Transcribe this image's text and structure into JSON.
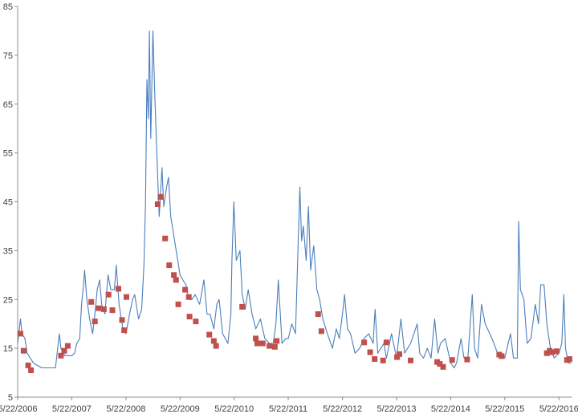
{
  "chart_data": {
    "type": "line",
    "title": "",
    "xlabel": "",
    "ylabel": "",
    "ylim": [
      5,
      85
    ],
    "y_ticks": [
      5,
      15,
      25,
      35,
      45,
      55,
      65,
      75,
      85
    ],
    "x_range": [
      "2006-05-22",
      "2016-08-15"
    ],
    "x_ticks": [
      {
        "date": "2006-05-22",
        "label": "5/22/2006"
      },
      {
        "date": "2007-05-22",
        "label": "5/22/2007"
      },
      {
        "date": "2008-05-22",
        "label": "5/22/2008"
      },
      {
        "date": "2009-05-22",
        "label": "5/22/2009"
      },
      {
        "date": "2010-05-22",
        "label": "5/22/2010"
      },
      {
        "date": "2011-05-22",
        "label": "5/22/2011"
      },
      {
        "date": "2012-05-22",
        "label": "5/22/2012"
      },
      {
        "date": "2013-05-22",
        "label": "5/22/2013"
      },
      {
        "date": "2014-05-22",
        "label": "5/22/2014"
      },
      {
        "date": "2015-05-22",
        "label": "5/22/2015"
      },
      {
        "date": "2016-05-22",
        "label": "5/22/2016"
      }
    ],
    "grid": false,
    "legend": "none",
    "colors": {
      "line": "#4a7ebb",
      "marker": "#c0504d",
      "axis": "#8c8c8c"
    },
    "series": [
      {
        "type": "line",
        "points": [
          [
            "2006-05-22",
            16
          ],
          [
            "2006-06-10",
            21
          ],
          [
            "2006-06-20",
            18
          ],
          [
            "2006-07-10",
            17
          ],
          [
            "2006-07-25",
            14
          ],
          [
            "2006-08-15",
            13
          ],
          [
            "2006-09-05",
            12
          ],
          [
            "2006-10-01",
            11.5
          ],
          [
            "2006-11-01",
            11
          ],
          [
            "2006-12-01",
            11
          ],
          [
            "2007-01-05",
            11
          ],
          [
            "2007-02-01",
            11
          ],
          [
            "2007-02-27",
            18
          ],
          [
            "2007-03-10",
            15
          ],
          [
            "2007-04-05",
            13.5
          ],
          [
            "2007-05-22",
            13.5
          ],
          [
            "2007-06-10",
            14
          ],
          [
            "2007-06-25",
            16
          ],
          [
            "2007-07-15",
            17
          ],
          [
            "2007-07-27",
            24
          ],
          [
            "2007-08-10",
            28
          ],
          [
            "2007-08-17",
            31
          ],
          [
            "2007-09-01",
            25
          ],
          [
            "2007-09-20",
            21
          ],
          [
            "2007-10-10",
            18
          ],
          [
            "2007-10-25",
            22
          ],
          [
            "2007-11-10",
            27
          ],
          [
            "2007-11-26",
            29
          ],
          [
            "2007-12-10",
            24
          ],
          [
            "2008-01-01",
            22
          ],
          [
            "2008-01-22",
            30
          ],
          [
            "2008-02-10",
            27
          ],
          [
            "2008-03-05",
            27
          ],
          [
            "2008-03-17",
            32
          ],
          [
            "2008-04-05",
            24
          ],
          [
            "2008-05-01",
            19
          ],
          [
            "2008-05-22",
            18
          ],
          [
            "2008-06-15",
            22
          ],
          [
            "2008-07-05",
            25
          ],
          [
            "2008-07-20",
            26
          ],
          [
            "2008-08-15",
            21
          ],
          [
            "2008-09-05",
            23
          ],
          [
            "2008-09-20",
            32
          ],
          [
            "2008-10-01",
            45
          ],
          [
            "2008-10-10",
            70
          ],
          [
            "2008-10-20",
            62
          ],
          [
            "2008-10-27",
            80
          ],
          [
            "2008-11-05",
            58
          ],
          [
            "2008-11-20",
            80
          ],
          [
            "2008-12-01",
            68
          ],
          [
            "2008-12-15",
            56
          ],
          [
            "2009-01-01",
            42
          ],
          [
            "2009-01-20",
            52
          ],
          [
            "2009-02-01",
            44
          ],
          [
            "2009-02-20",
            48
          ],
          [
            "2009-03-05",
            50
          ],
          [
            "2009-03-20",
            42
          ],
          [
            "2009-04-10",
            38
          ],
          [
            "2009-05-01",
            34
          ],
          [
            "2009-05-22",
            30
          ],
          [
            "2009-06-10",
            29
          ],
          [
            "2009-07-01",
            28
          ],
          [
            "2009-07-20",
            25
          ],
          [
            "2009-08-10",
            25
          ],
          [
            "2009-09-01",
            26
          ],
          [
            "2009-10-01",
            24
          ],
          [
            "2009-10-30",
            29
          ],
          [
            "2009-11-20",
            22
          ],
          [
            "2009-12-10",
            22
          ],
          [
            "2010-01-05",
            19
          ],
          [
            "2010-01-25",
            24
          ],
          [
            "2010-02-10",
            25
          ],
          [
            "2010-03-05",
            18
          ],
          [
            "2010-04-10",
            16
          ],
          [
            "2010-04-30",
            22
          ],
          [
            "2010-05-07",
            33
          ],
          [
            "2010-05-20",
            45
          ],
          [
            "2010-06-05",
            33
          ],
          [
            "2010-06-30",
            35
          ],
          [
            "2010-07-15",
            26
          ],
          [
            "2010-08-05",
            23
          ],
          [
            "2010-08-25",
            27
          ],
          [
            "2010-09-20",
            22
          ],
          [
            "2010-10-15",
            19
          ],
          [
            "2010-11-15",
            21
          ],
          [
            "2010-12-15",
            17
          ],
          [
            "2011-01-15",
            16
          ],
          [
            "2011-02-10",
            16
          ],
          [
            "2011-02-28",
            20
          ],
          [
            "2011-03-16",
            29
          ],
          [
            "2011-04-10",
            16
          ],
          [
            "2011-05-05",
            17
          ],
          [
            "2011-05-22",
            17
          ],
          [
            "2011-06-15",
            20
          ],
          [
            "2011-07-10",
            18
          ],
          [
            "2011-08-08",
            48
          ],
          [
            "2011-08-20",
            37
          ],
          [
            "2011-09-01",
            40
          ],
          [
            "2011-09-20",
            33
          ],
          [
            "2011-10-05",
            44
          ],
          [
            "2011-10-20",
            31
          ],
          [
            "2011-11-10",
            36
          ],
          [
            "2011-12-01",
            27
          ],
          [
            "2011-12-20",
            25
          ],
          [
            "2012-01-10",
            21
          ],
          [
            "2012-02-10",
            18
          ],
          [
            "2012-03-15",
            15
          ],
          [
            "2012-04-10",
            19
          ],
          [
            "2012-05-01",
            17
          ],
          [
            "2012-05-22",
            22
          ],
          [
            "2012-06-05",
            26
          ],
          [
            "2012-06-25",
            19
          ],
          [
            "2012-07-15",
            18
          ],
          [
            "2012-08-15",
            14
          ],
          [
            "2012-09-15",
            15
          ],
          [
            "2012-10-15",
            17
          ],
          [
            "2012-11-15",
            18
          ],
          [
            "2012-12-15",
            16
          ],
          [
            "2012-12-28",
            23
          ],
          [
            "2013-01-15",
            14
          ],
          [
            "2013-02-25",
            16
          ],
          [
            "2013-03-15",
            13
          ],
          [
            "2013-04-18",
            18
          ],
          [
            "2013-05-22",
            13
          ],
          [
            "2013-06-20",
            21
          ],
          [
            "2013-07-15",
            14
          ],
          [
            "2013-08-25",
            16
          ],
          [
            "2013-10-08",
            20
          ],
          [
            "2013-10-25",
            14
          ],
          [
            "2013-11-20",
            13
          ],
          [
            "2013-12-15",
            15
          ],
          [
            "2014-01-10",
            13
          ],
          [
            "2014-02-03",
            21
          ],
          [
            "2014-02-25",
            14
          ],
          [
            "2014-03-15",
            16
          ],
          [
            "2014-04-15",
            17
          ],
          [
            "2014-05-22",
            12
          ],
          [
            "2014-06-15",
            11
          ],
          [
            "2014-07-01",
            12
          ],
          [
            "2014-07-31",
            17
          ],
          [
            "2014-08-20",
            13
          ],
          [
            "2014-09-15",
            13
          ],
          [
            "2014-10-15",
            26
          ],
          [
            "2014-10-30",
            15
          ],
          [
            "2014-11-20",
            13
          ],
          [
            "2014-12-16",
            24
          ],
          [
            "2015-01-10",
            20
          ],
          [
            "2015-02-10",
            18
          ],
          [
            "2015-03-10",
            16
          ],
          [
            "2015-04-15",
            13
          ],
          [
            "2015-05-22",
            13
          ],
          [
            "2015-06-30",
            18
          ],
          [
            "2015-07-20",
            13
          ],
          [
            "2015-08-15",
            13
          ],
          [
            "2015-08-24",
            41
          ],
          [
            "2015-09-05",
            27
          ],
          [
            "2015-09-28",
            25
          ],
          [
            "2015-10-20",
            16
          ],
          [
            "2015-11-15",
            17
          ],
          [
            "2015-12-14",
            24
          ],
          [
            "2016-01-05",
            20
          ],
          [
            "2016-01-20",
            28
          ],
          [
            "2016-02-11",
            28
          ],
          [
            "2016-03-01",
            20
          ],
          [
            "2016-03-25",
            15
          ],
          [
            "2016-04-20",
            13
          ],
          [
            "2016-05-22",
            14
          ],
          [
            "2016-06-10",
            16
          ],
          [
            "2016-06-24",
            26
          ],
          [
            "2016-07-05",
            15
          ],
          [
            "2016-07-25",
            12
          ],
          [
            "2016-08-15",
            12
          ]
        ]
      },
      {
        "type": "scatter",
        "points": [
          [
            "2006-06-10",
            18
          ],
          [
            "2006-07-01",
            14.5
          ],
          [
            "2006-08-01",
            11.5
          ],
          [
            "2006-08-20",
            10.5
          ],
          [
            "2007-03-10",
            13.5
          ],
          [
            "2007-04-01",
            14.5
          ],
          [
            "2007-04-25",
            15.5
          ],
          [
            "2007-10-01",
            24.5
          ],
          [
            "2007-10-25",
            20.5
          ],
          [
            "2007-11-20",
            23.2
          ],
          [
            "2007-12-25",
            23
          ],
          [
            "2008-01-25",
            26
          ],
          [
            "2008-02-20",
            22.8
          ],
          [
            "2008-04-01",
            27.2
          ],
          [
            "2008-04-25",
            20.8
          ],
          [
            "2008-05-10",
            18.7
          ],
          [
            "2008-05-25",
            25.5
          ],
          [
            "2008-12-22",
            44.5
          ],
          [
            "2009-01-10",
            46
          ],
          [
            "2009-02-10",
            37.5
          ],
          [
            "2009-03-10",
            32
          ],
          [
            "2009-04-10",
            30
          ],
          [
            "2009-04-25",
            29
          ],
          [
            "2009-05-10",
            24
          ],
          [
            "2009-06-25",
            27
          ],
          [
            "2009-07-20",
            25.5
          ],
          [
            "2009-07-25",
            21.5
          ],
          [
            "2009-09-05",
            20.5
          ],
          [
            "2009-12-05",
            17.8
          ],
          [
            "2010-01-05",
            16.5
          ],
          [
            "2010-01-20",
            15.5
          ],
          [
            "2010-07-15",
            23.5
          ],
          [
            "2010-10-15",
            17
          ],
          [
            "2010-10-25",
            16
          ],
          [
            "2010-12-01",
            16
          ],
          [
            "2011-01-15",
            15.5
          ],
          [
            "2011-02-20",
            15.3
          ],
          [
            "2011-03-05",
            16.5
          ],
          [
            "2011-12-10",
            22
          ],
          [
            "2012-01-01",
            18.5
          ],
          [
            "2012-10-15",
            16.2
          ],
          [
            "2012-11-25",
            14.2
          ],
          [
            "2012-12-25",
            12.8
          ],
          [
            "2013-02-20",
            12.5
          ],
          [
            "2013-03-15",
            16.2
          ],
          [
            "2013-05-25",
            13.2
          ],
          [
            "2013-06-10",
            13.8
          ],
          [
            "2013-08-25",
            12.5
          ],
          [
            "2014-02-20",
            12.2
          ],
          [
            "2014-03-10",
            11.8
          ],
          [
            "2014-04-01",
            11.2
          ],
          [
            "2014-06-01",
            12.6
          ],
          [
            "2014-09-10",
            12.7
          ],
          [
            "2015-04-15",
            13.7
          ],
          [
            "2015-05-01",
            13.4
          ],
          [
            "2016-03-01",
            14
          ],
          [
            "2016-03-20",
            14.5
          ],
          [
            "2016-04-05",
            14.2
          ],
          [
            "2016-05-05",
            14.4
          ],
          [
            "2016-07-15",
            12.6
          ],
          [
            "2016-08-01",
            12.8
          ]
        ]
      }
    ]
  }
}
